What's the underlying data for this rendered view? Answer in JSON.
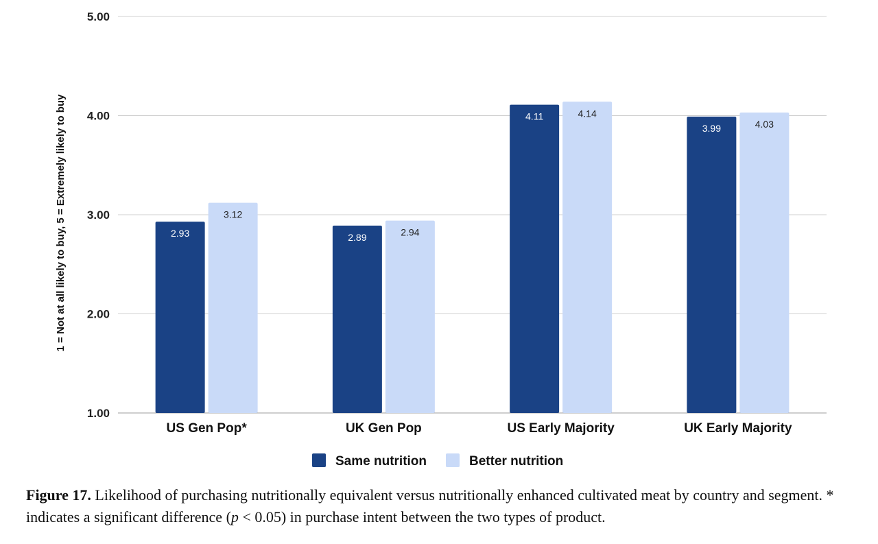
{
  "chart_data": {
    "type": "bar",
    "categories": [
      "US Gen Pop*",
      "UK Gen Pop",
      "US Early Majority",
      "UK Early Majority"
    ],
    "series": [
      {
        "name": "Same nutrition",
        "color": "#1a4285",
        "label_color": "#ffffff",
        "values": [
          2.93,
          2.89,
          4.11,
          3.99
        ]
      },
      {
        "name": "Better nutrition",
        "color": "#c9daf8",
        "label_color": "#222222",
        "values": [
          3.12,
          2.94,
          4.14,
          4.03
        ]
      }
    ],
    "ylim": [
      1,
      5
    ],
    "yticks": [
      "1.00",
      "2.00",
      "3.00",
      "4.00",
      "5.00"
    ],
    "ylabel": "1 = Not at all likely to buy, 5 = Extremely likely to buy",
    "xlabel": "",
    "grid": true,
    "legend_position": "bottom"
  },
  "caption": {
    "label": "Figure 17.",
    "text_1": " Likelihood of purchasing nutritionally equivalent versus nutritionally enhanced cultivated meat by country and segment. * indicates a significant difference (",
    "p": "p",
    "text_2": " < 0.05) in purchase intent between the two types of product."
  }
}
